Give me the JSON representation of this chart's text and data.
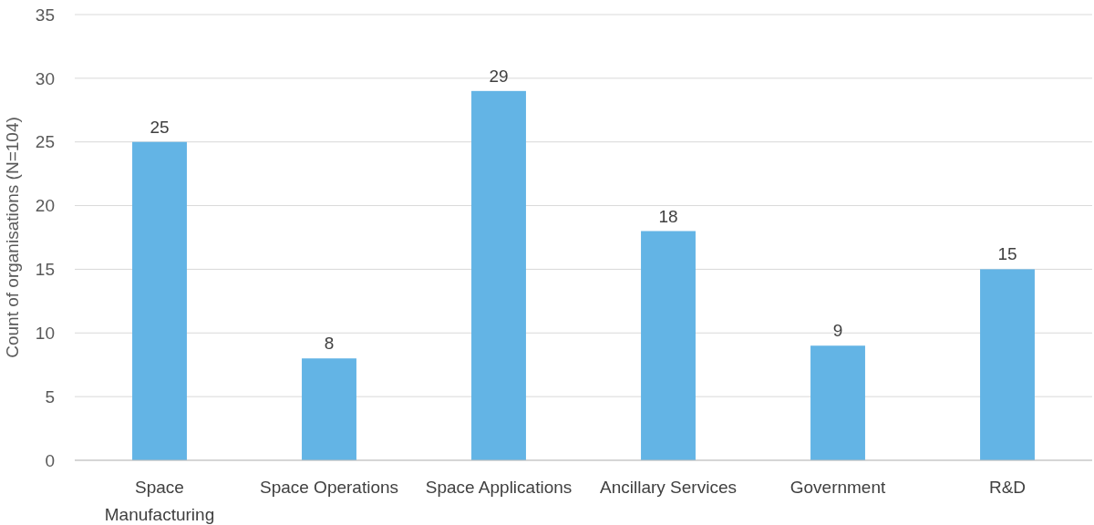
{
  "chart_data": {
    "type": "bar",
    "ylabel": "Count of organisations (N=104)",
    "categories": [
      "Space Manufacturing",
      "Space Operations",
      "Space Applications",
      "Ancillary Services",
      "Government",
      "R&D"
    ],
    "values": [
      25,
      8,
      29,
      18,
      9,
      15
    ],
    "color": "#63b4e5",
    "ylim": [
      0,
      35
    ],
    "yticks": [
      0,
      5,
      10,
      15,
      20,
      25,
      30,
      35
    ],
    "grid": "y",
    "data_labels": true
  }
}
